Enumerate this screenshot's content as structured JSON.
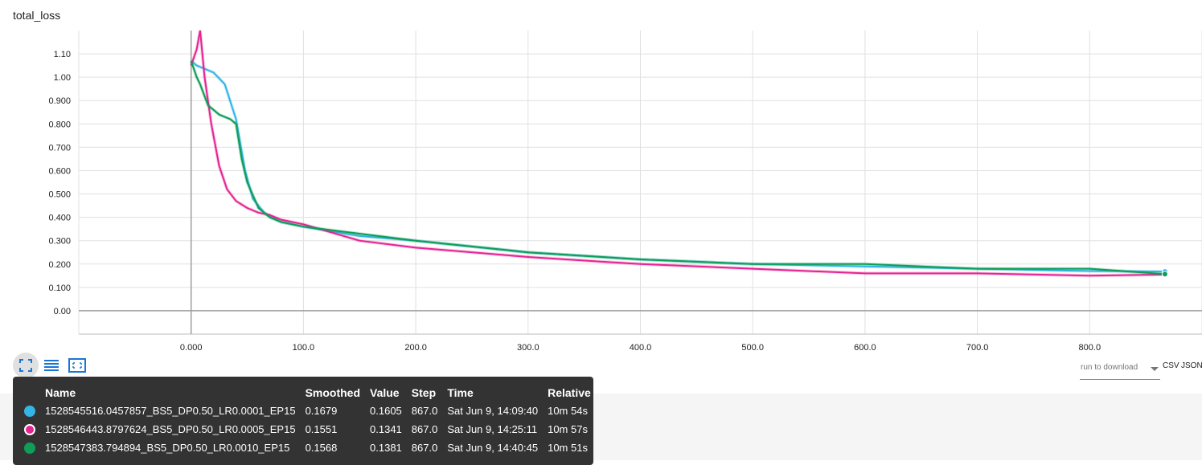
{
  "title": "total_loss",
  "chart_data": {
    "type": "line",
    "title": "total_loss",
    "xlabel": "",
    "ylabel": "",
    "xlim": [
      -100,
      900
    ],
    "ylim": [
      -0.1,
      1.2
    ],
    "x_ticks": [
      0,
      100,
      200,
      300,
      400,
      500,
      600,
      700,
      800
    ],
    "x_tick_labels": [
      "0.000",
      "100.0",
      "200.0",
      "300.0",
      "400.0",
      "500.0",
      "600.0",
      "700.0",
      "800.0"
    ],
    "y_ticks": [
      0,
      0.1,
      0.2,
      0.3,
      0.4,
      0.5,
      0.6,
      0.7,
      0.8,
      0.9,
      1.0,
      1.1
    ],
    "y_tick_labels": [
      "0.00",
      "0.100",
      "0.200",
      "0.300",
      "0.400",
      "0.500",
      "0.600",
      "0.700",
      "0.800",
      "0.900",
      "1.00",
      "1.10"
    ],
    "grid": true,
    "series": [
      {
        "name": "1528545516.0457857_BS5_DP0.50_LR0.0001_EP15",
        "color": "#33b5e5",
        "x": [
          0,
          5,
          10,
          20,
          30,
          40,
          48,
          55,
          65,
          80,
          100,
          150,
          200,
          300,
          400,
          500,
          600,
          700,
          800,
          867
        ],
        "y": [
          1.07,
          1.05,
          1.04,
          1.02,
          0.97,
          0.82,
          0.6,
          0.48,
          0.42,
          0.38,
          0.36,
          0.32,
          0.3,
          0.25,
          0.22,
          0.2,
          0.19,
          0.18,
          0.17,
          0.168
        ]
      },
      {
        "name": "1528546443.8797624_BS5_DP0.50_LR0.0005_EP15",
        "color": "#e52592",
        "x": [
          0,
          5,
          8,
          12,
          18,
          25,
          32,
          40,
          50,
          60,
          70,
          80,
          100,
          150,
          200,
          300,
          400,
          500,
          600,
          700,
          800,
          867
        ],
        "y": [
          1.05,
          1.12,
          1.2,
          1.0,
          0.8,
          0.62,
          0.52,
          0.47,
          0.44,
          0.42,
          0.41,
          0.39,
          0.37,
          0.3,
          0.27,
          0.23,
          0.2,
          0.18,
          0.16,
          0.16,
          0.15,
          0.155
        ]
      },
      {
        "name": "1528547383.794894_BS5_DP0.50_LR0.0010_EP15",
        "color": "#0f9d58",
        "x": [
          0,
          5,
          8,
          15,
          25,
          35,
          40,
          45,
          50,
          60,
          70,
          80,
          100,
          150,
          200,
          300,
          400,
          500,
          600,
          700,
          800,
          867
        ],
        "y": [
          1.07,
          1.0,
          0.97,
          0.88,
          0.84,
          0.82,
          0.8,
          0.65,
          0.55,
          0.44,
          0.4,
          0.38,
          0.36,
          0.33,
          0.3,
          0.25,
          0.22,
          0.2,
          0.2,
          0.18,
          0.18,
          0.157
        ]
      }
    ]
  },
  "controls": {
    "expand_icon": "fullscreen-icon",
    "log_icon": "list-icon",
    "fit_icon": "fit-domain-icon"
  },
  "download": {
    "placeholder": "run to download",
    "csv": "CSV",
    "json": "JSON"
  },
  "tooltip": {
    "headers": [
      "Name",
      "Smoothed",
      "Value",
      "Step",
      "Time",
      "Relative"
    ],
    "rows": [
      {
        "color": "#33b5e5",
        "name": "1528545516.0457857_BS5_DP0.50_LR0.0001_EP15",
        "smoothed": "0.1679",
        "value": "0.1605",
        "step": "867.0",
        "time": "Sat Jun 9, 14:09:40",
        "relative": "10m 54s"
      },
      {
        "color": "#e52592",
        "name": "1528546443.8797624_BS5_DP0.50_LR0.0005_EP15",
        "smoothed": "0.1551",
        "value": "0.1341",
        "step": "867.0",
        "time": "Sat Jun 9, 14:25:11",
        "relative": "10m 57s"
      },
      {
        "color": "#0f9d58",
        "name": "1528547383.794894_BS5_DP0.50_LR0.0010_EP15",
        "smoothed": "0.1568",
        "value": "0.1381",
        "step": "867.0",
        "time": "Sat Jun 9, 14:40:45",
        "relative": "10m 51s"
      }
    ]
  }
}
